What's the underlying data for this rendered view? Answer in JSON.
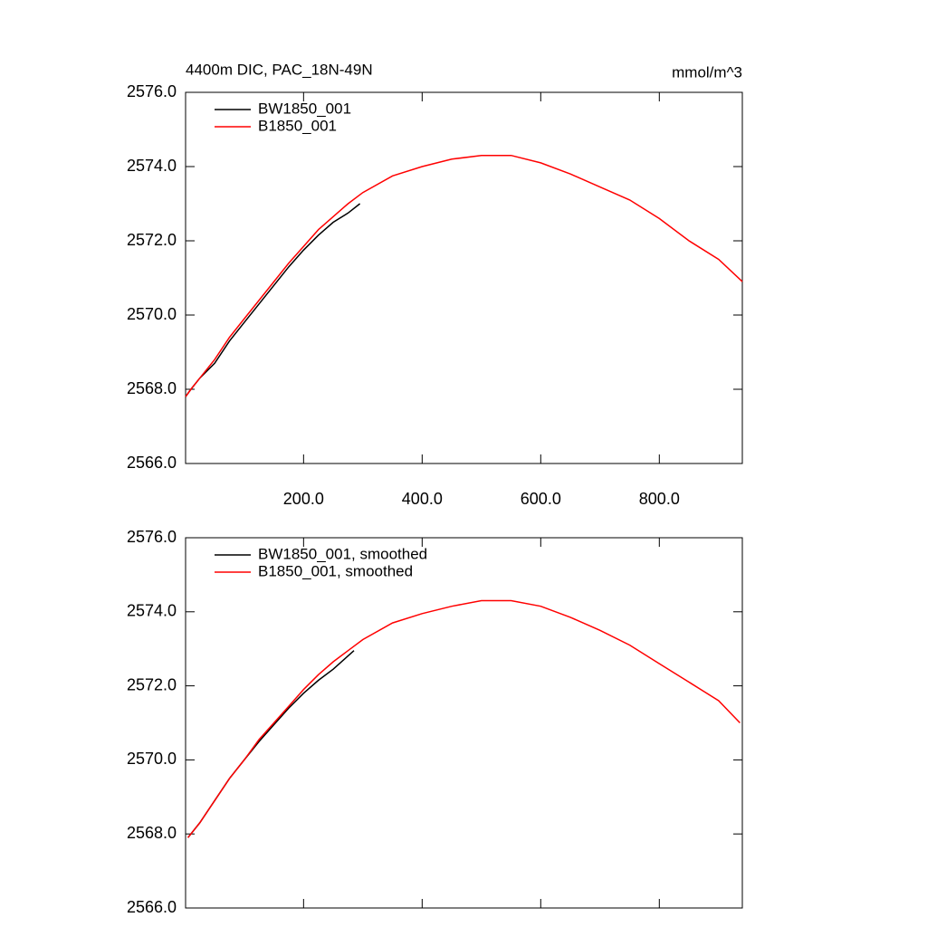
{
  "chart_data": [
    {
      "type": "line",
      "title": "4400m DIC, PAC_18N-49N",
      "units": "mmol/m^3",
      "xlim": [
        1,
        940
      ],
      "xticks": [
        {
          "value": 200,
          "label": "200.0"
        },
        {
          "value": 400,
          "label": "400.0"
        },
        {
          "value": 600,
          "label": "600.0"
        },
        {
          "value": 800,
          "label": "800.0"
        }
      ],
      "ylim": [
        2566,
        2576
      ],
      "yticks": [
        {
          "value": 2566,
          "label": "2566.0"
        },
        {
          "value": 2568,
          "label": "2568.0"
        },
        {
          "value": 2570,
          "label": "2570.0"
        },
        {
          "value": 2572,
          "label": "2572.0"
        },
        {
          "value": 2574,
          "label": "2574.0"
        },
        {
          "value": 2576,
          "label": "2576.0"
        }
      ],
      "legend": "top-left",
      "series": [
        {
          "name": "BW1850_001",
          "color": "#000000",
          "x": [
            1,
            10,
            25,
            50,
            75,
            100,
            125,
            150,
            175,
            200,
            225,
            250,
            275,
            295
          ],
          "values": [
            2567.8,
            2568.0,
            2568.3,
            2568.7,
            2569.3,
            2569.8,
            2570.3,
            2570.8,
            2571.3,
            2571.75,
            2572.15,
            2572.5,
            2572.75,
            2573.0
          ]
        },
        {
          "name": "B1850_001",
          "color": "#ff0000",
          "x": [
            1,
            10,
            25,
            50,
            75,
            100,
            125,
            150,
            175,
            200,
            225,
            250,
            275,
            300,
            350,
            400,
            450,
            500,
            550,
            600,
            650,
            700,
            750,
            800,
            850,
            900,
            940
          ],
          "values": [
            2567.8,
            2568.0,
            2568.3,
            2568.8,
            2569.4,
            2569.9,
            2570.4,
            2570.9,
            2571.4,
            2571.85,
            2572.3,
            2572.65,
            2573.0,
            2573.3,
            2573.75,
            2574.0,
            2574.2,
            2574.3,
            2574.3,
            2574.1,
            2573.8,
            2573.45,
            2573.1,
            2572.6,
            2572.0,
            2571.5,
            2570.9
          ]
        }
      ]
    },
    {
      "type": "line",
      "xlim": [
        1,
        940
      ],
      "xticks": [
        200,
        400,
        600,
        800
      ],
      "ylim": [
        2566,
        2576
      ],
      "yticks": [
        {
          "value": 2566,
          "label": "2566.0"
        },
        {
          "value": 2568,
          "label": "2568.0"
        },
        {
          "value": 2570,
          "label": "2570.0"
        },
        {
          "value": 2572,
          "label": "2572.0"
        },
        {
          "value": 2574,
          "label": "2574.0"
        },
        {
          "value": 2576,
          "label": "2576.0"
        }
      ],
      "legend": "top-left",
      "series": [
        {
          "name": "BW1850_001, smoothed",
          "color": "#000000",
          "x": [
            5,
            25,
            50,
            75,
            100,
            125,
            150,
            175,
            200,
            225,
            250,
            285
          ],
          "values": [
            2567.9,
            2568.3,
            2568.9,
            2569.5,
            2570.0,
            2570.5,
            2570.95,
            2571.4,
            2571.8,
            2572.15,
            2572.45,
            2572.95
          ]
        },
        {
          "name": "B1850_001, smoothed",
          "color": "#ff0000",
          "x": [
            5,
            25,
            50,
            75,
            100,
            125,
            150,
            175,
            200,
            225,
            250,
            275,
            300,
            350,
            400,
            450,
            500,
            550,
            600,
            650,
            700,
            750,
            800,
            850,
            900,
            936
          ],
          "values": [
            2567.9,
            2568.3,
            2568.9,
            2569.5,
            2570.0,
            2570.55,
            2571.0,
            2571.45,
            2571.9,
            2572.3,
            2572.65,
            2572.95,
            2573.25,
            2573.7,
            2573.95,
            2574.15,
            2574.3,
            2574.3,
            2574.15,
            2573.85,
            2573.5,
            2573.1,
            2572.6,
            2572.1,
            2571.6,
            2571.0
          ]
        }
      ]
    }
  ]
}
